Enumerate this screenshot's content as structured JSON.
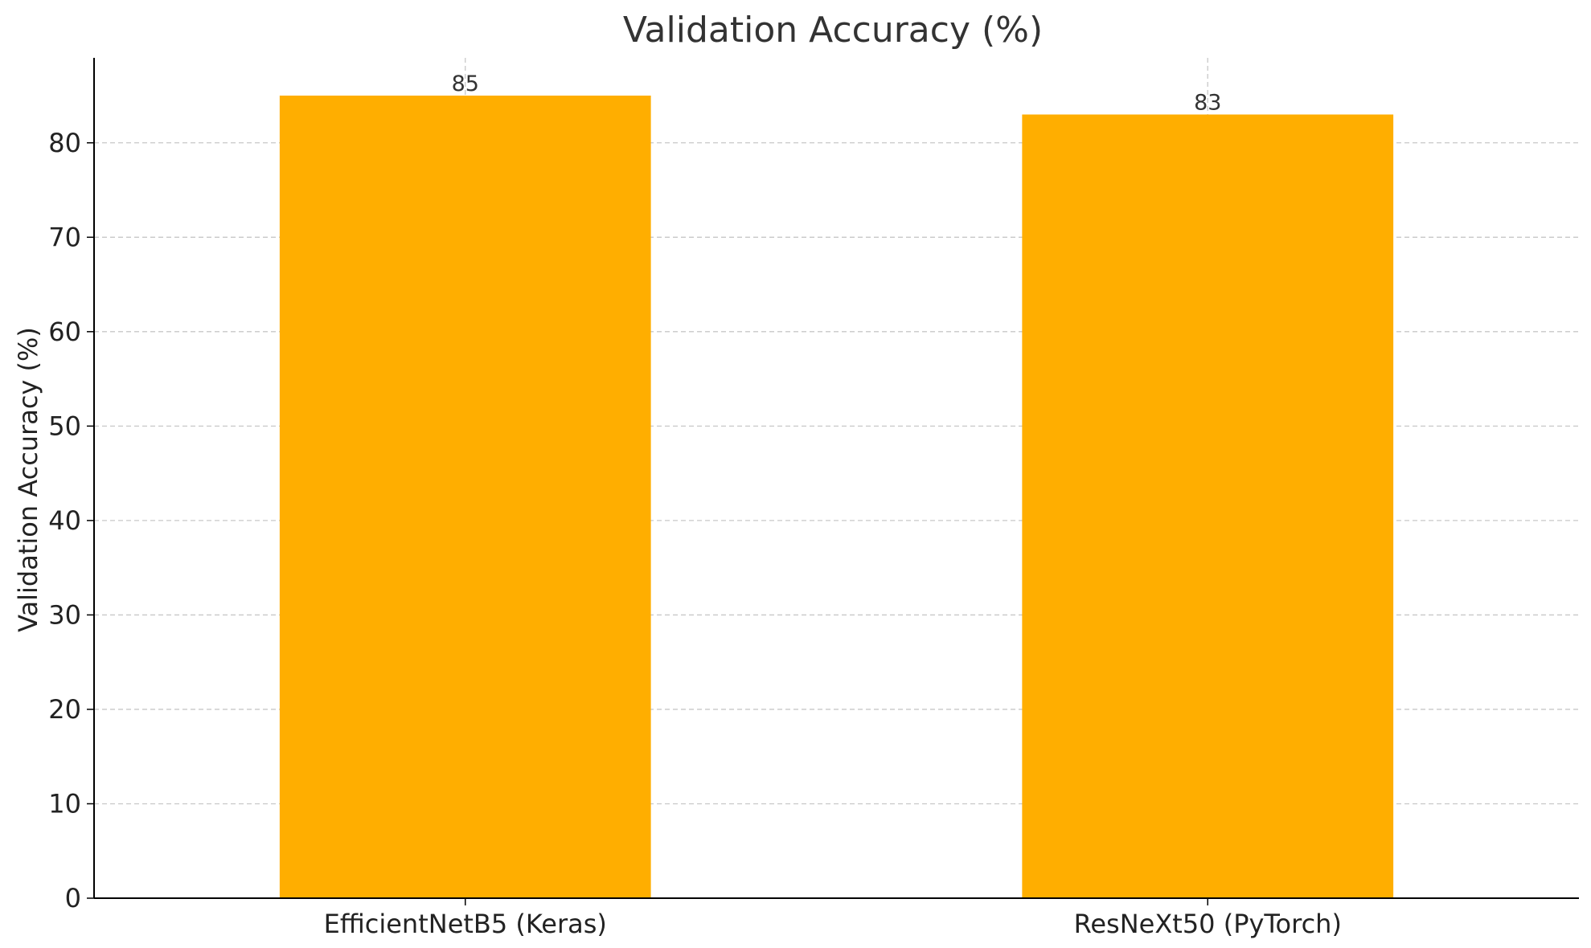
{
  "chart_data": {
    "type": "bar",
    "title": "Validation Accuracy (%)",
    "xlabel": "",
    "ylabel": "Validation Accuracy (%)",
    "categories": [
      "EfficientNetB5 (Keras)",
      "ResNeXt50 (PyTorch)"
    ],
    "values": [
      85,
      83
    ],
    "data_labels": [
      "85",
      "83"
    ],
    "ylim": [
      0,
      89
    ],
    "yticks": [
      0,
      10,
      20,
      30,
      40,
      50,
      60,
      70,
      80
    ],
    "ytick_labels": [
      "0",
      "10",
      "20",
      "30",
      "40",
      "50",
      "60",
      "70",
      "80"
    ],
    "grid": true,
    "grid_style": "dashed",
    "legend": "none",
    "colors": {
      "bar": "#FFAE00",
      "grid": "#c8c8c8",
      "axis": "#000000",
      "text": "#333333"
    }
  }
}
